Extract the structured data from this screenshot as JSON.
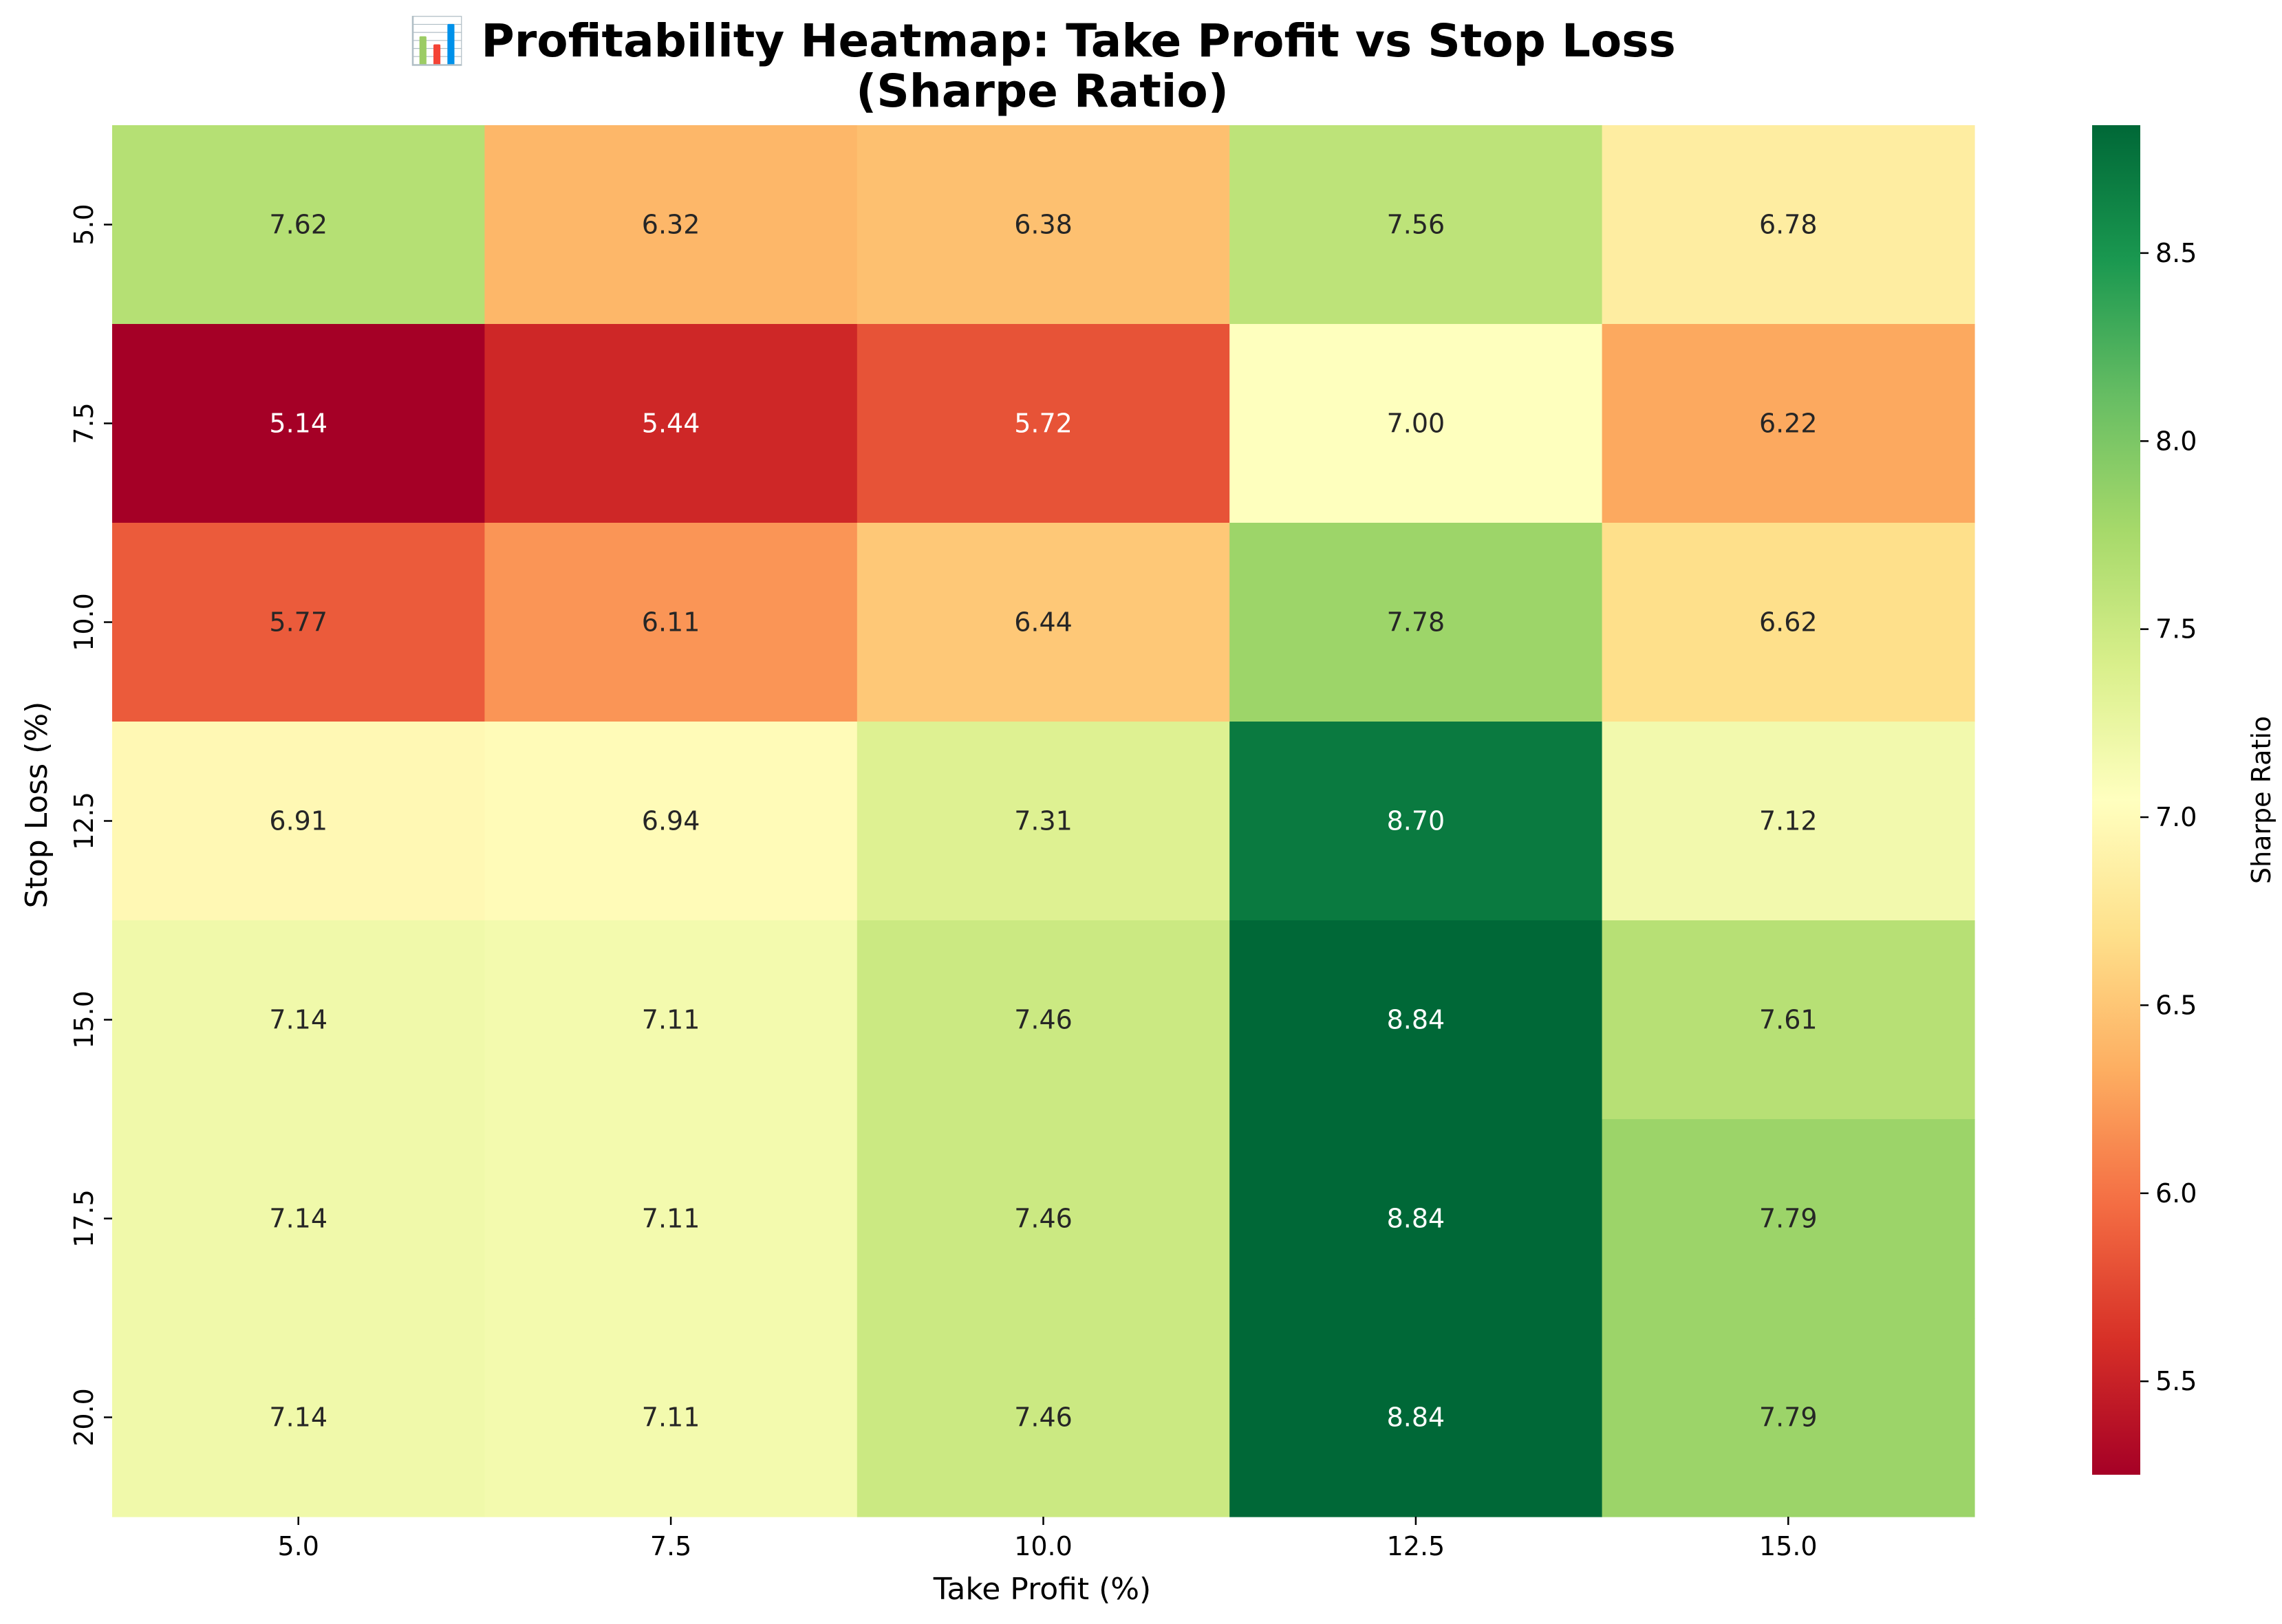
{
  "chart_data": {
    "type": "heatmap",
    "title_line1": "📊 Profitability Heatmap: Take Profit vs Stop Loss",
    "title_line2": "(Sharpe Ratio)",
    "xlabel": "Take Profit (%)",
    "ylabel": "Stop Loss (%)",
    "colorbar_label": "Sharpe Ratio",
    "colormap": "RdYlGn",
    "x_categories": [
      "5.0",
      "7.5",
      "10.0",
      "12.5",
      "15.0"
    ],
    "y_categories": [
      "5.0",
      "7.5",
      "10.0",
      "12.5",
      "15.0",
      "17.5",
      "20.0"
    ],
    "values": [
      [
        7.62,
        6.32,
        6.38,
        7.56,
        6.78
      ],
      [
        5.14,
        5.44,
        5.72,
        7.0,
        6.22
      ],
      [
        5.77,
        6.11,
        6.44,
        7.78,
        6.62
      ],
      [
        6.91,
        6.94,
        7.31,
        8.7,
        7.12
      ],
      [
        7.14,
        7.11,
        7.46,
        8.84,
        7.61
      ],
      [
        7.14,
        7.11,
        7.46,
        8.84,
        7.79
      ],
      [
        7.14,
        7.11,
        7.46,
        8.84,
        7.79
      ]
    ],
    "cell_labels": [
      [
        "7.62",
        "6.32",
        "6.38",
        "7.56",
        "6.78"
      ],
      [
        "5.14",
        "5.44",
        "5.72",
        "7.00",
        "6.22"
      ],
      [
        "5.77",
        "6.11",
        "6.44",
        "7.78",
        "6.62"
      ],
      [
        "6.91",
        "6.94",
        "7.31",
        "8.70",
        "7.12"
      ],
      [
        "7.14",
        "7.11",
        "7.46",
        "8.84",
        "7.61"
      ],
      [
        "7.14",
        "7.11",
        "7.46",
        "8.84",
        "7.79"
      ],
      [
        "7.14",
        "7.11",
        "7.46",
        "8.84",
        "7.79"
      ]
    ],
    "vmin": 5.14,
    "vmax": 8.84,
    "colorbar_ticks": [
      5.5,
      6.0,
      6.5,
      7.0,
      7.5,
      8.0,
      8.5
    ],
    "colorbar_tick_labels": [
      "5.5",
      "6.0",
      "6.5",
      "7.0",
      "7.5",
      "8.0",
      "8.5"
    ]
  }
}
